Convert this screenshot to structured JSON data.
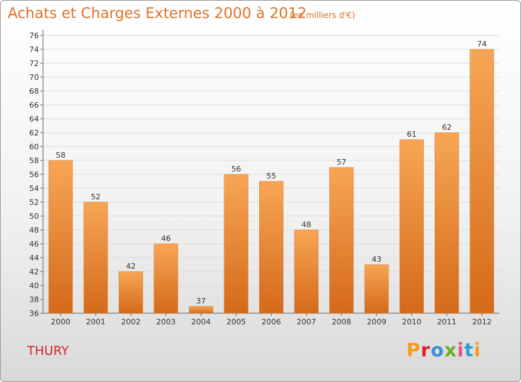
{
  "header": {
    "title": "Achats et Charges Externes 2000 à 2012",
    "subtitle": "(en milliers d'€)"
  },
  "footer": {
    "town": "THURY",
    "brand": "Proxiti",
    "brand_colors": [
      "#f29b1d",
      "#d9232f",
      "#3b8ed8",
      "#6ab023",
      "#e94e8a",
      "#2c9fd6",
      "#f29b1d"
    ]
  },
  "colors": {
    "accent": "#e0712a",
    "bar_top": "#f7a655",
    "bar_bottom": "#d46a1a",
    "town": "#d9232f"
  },
  "chart_data": {
    "type": "bar",
    "title": "Achats et Charges Externes 2000 à 2012",
    "subtitle": "(en milliers d'€)",
    "categories": [
      "2000",
      "2001",
      "2002",
      "2003",
      "2004",
      "2005",
      "2006",
      "2007",
      "2008",
      "2009",
      "2010",
      "2011",
      "2012"
    ],
    "values": [
      58,
      52,
      42,
      46,
      37,
      56,
      55,
      48,
      57,
      43,
      61,
      62,
      74
    ],
    "ylim": [
      36,
      76
    ],
    "yticks": [
      36,
      38,
      40,
      42,
      44,
      46,
      48,
      50,
      52,
      54,
      56,
      58,
      60,
      62,
      64,
      66,
      68,
      70,
      72,
      74,
      76
    ],
    "xlabel": "",
    "ylabel": "",
    "grid": true,
    "legend": "none"
  }
}
